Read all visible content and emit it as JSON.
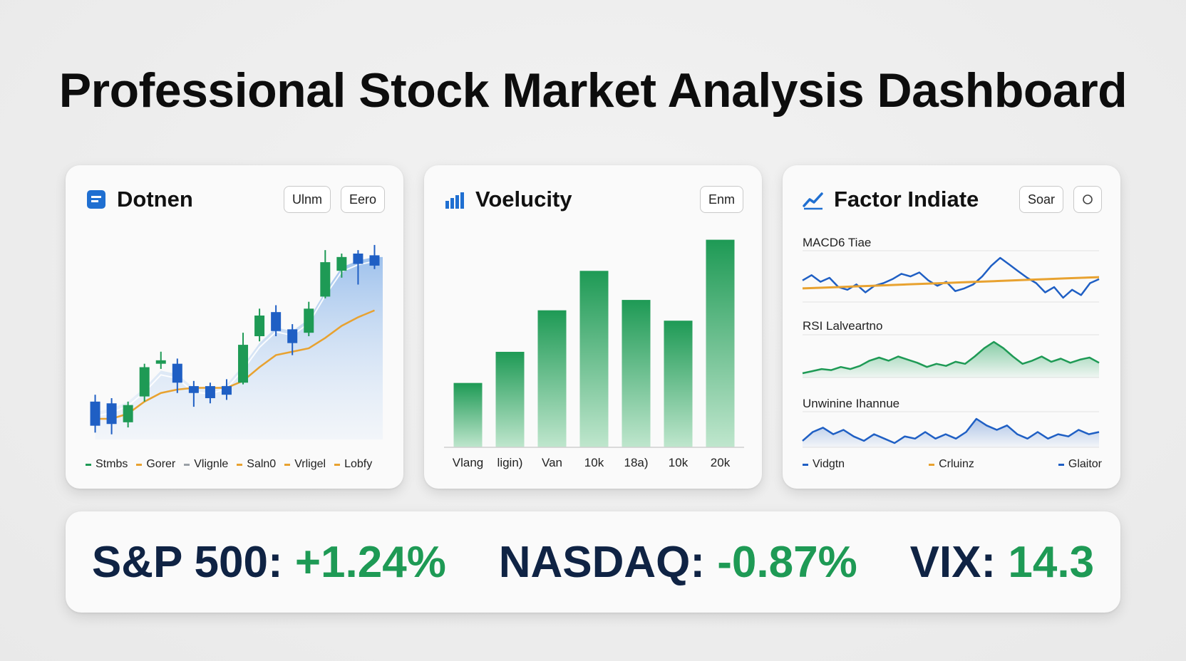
{
  "page": {
    "title": "Professional Stock Market Analysis Dashboard"
  },
  "colors": {
    "green": "#1e9a55",
    "blue": "#1f5fc4",
    "orange": "#e8a230",
    "navy": "#0f2344"
  },
  "cards": {
    "price": {
      "title": "Dotnen",
      "icon": "document-icon",
      "buttons": [
        "Ulnm",
        "Eero"
      ],
      "legend": [
        {
          "label": "Stmbs",
          "color": "#1e9a55"
        },
        {
          "label": "Gorer",
          "color": "#e8a230"
        },
        {
          "label": "Vlignle",
          "color": "#9aa0a6"
        },
        {
          "label": "Saln0",
          "color": "#e8a230"
        },
        {
          "label": "Vrligel",
          "color": "#e8a230"
        },
        {
          "label": "Lobfy",
          "color": "#e8a230"
        }
      ]
    },
    "volume": {
      "title": "Voelucity",
      "icon": "bar-chart-icon",
      "buttons": [
        "Enm"
      ]
    },
    "factor": {
      "title": "Factor Indiate",
      "icon": "trend-line-icon",
      "buttons": [
        "Soar"
      ],
      "settings_icon": "circle-icon",
      "panels": [
        "MACD6 Tiae",
        "RSI Lalveartno",
        "Unwinine Ihannue"
      ],
      "legend": [
        {
          "label": "Vidgtn",
          "color": "#1f5fc4"
        },
        {
          "label": "Crluinz",
          "color": "#e8a230"
        },
        {
          "label": "Glaitor",
          "color": "#1f5fc4"
        }
      ]
    }
  },
  "chart_data": [
    {
      "type": "candlestick",
      "title": "Dotnen",
      "candles": [
        {
          "o": 2.2,
          "c": 0.8,
          "h": 2.6,
          "l": 0.4,
          "dir": "down"
        },
        {
          "o": 2.1,
          "c": 0.9,
          "h": 2.4,
          "l": 0.3,
          "dir": "down"
        },
        {
          "o": 1.0,
          "c": 2.0,
          "h": 2.2,
          "l": 0.7,
          "dir": "up"
        },
        {
          "o": 2.5,
          "c": 4.2,
          "h": 4.4,
          "l": 2.2,
          "dir": "up"
        },
        {
          "o": 4.4,
          "c": 4.6,
          "h": 5.1,
          "l": 4.1,
          "dir": "up"
        },
        {
          "o": 4.4,
          "c": 3.3,
          "h": 4.7,
          "l": 2.7,
          "dir": "down"
        },
        {
          "o": 3.1,
          "c": 2.7,
          "h": 3.4,
          "l": 1.9,
          "dir": "down"
        },
        {
          "o": 3.1,
          "c": 2.4,
          "h": 3.3,
          "l": 2.1,
          "dir": "down"
        },
        {
          "o": 3.1,
          "c": 2.6,
          "h": 3.5,
          "l": 2.3,
          "dir": "down"
        },
        {
          "o": 3.3,
          "c": 5.5,
          "h": 6.2,
          "l": 3.2,
          "dir": "up"
        },
        {
          "o": 6.0,
          "c": 7.2,
          "h": 7.6,
          "l": 5.7,
          "dir": "up"
        },
        {
          "o": 7.4,
          "c": 6.3,
          "h": 7.8,
          "l": 6.0,
          "dir": "down"
        },
        {
          "o": 6.4,
          "c": 5.6,
          "h": 6.7,
          "l": 4.9,
          "dir": "down"
        },
        {
          "o": 6.2,
          "c": 7.6,
          "h": 8.0,
          "l": 6.0,
          "dir": "up"
        },
        {
          "o": 8.3,
          "c": 10.3,
          "h": 11.0,
          "l": 8.2,
          "dir": "up"
        },
        {
          "o": 9.8,
          "c": 10.6,
          "h": 10.8,
          "l": 9.4,
          "dir": "up"
        },
        {
          "o": 10.8,
          "c": 10.2,
          "h": 11.0,
          "l": 9.0,
          "dir": "down"
        },
        {
          "o": 10.7,
          "c": 10.1,
          "h": 11.3,
          "l": 9.9,
          "dir": "down"
        }
      ],
      "moving_average": [
        1.2,
        1.2,
        1.5,
        2.2,
        2.7,
        2.9,
        3.0,
        3.0,
        3.0,
        3.4,
        4.2,
        4.9,
        5.1,
        5.3,
        5.9,
        6.6,
        7.1,
        7.5
      ],
      "area": [
        1.6,
        1.8,
        2.2,
        3.0,
        4.0,
        3.8,
        3.0,
        2.9,
        3.2,
        4.3,
        5.6,
        6.5,
        6.3,
        7.0,
        8.6,
        10.0,
        10.4,
        10.6
      ],
      "y_range": [
        0,
        12
      ]
    },
    {
      "type": "bar",
      "title": "Voelucity",
      "categories": [
        "Vlang",
        "ligin)",
        "Van",
        "10k",
        "18a)",
        "10k",
        "20k"
      ],
      "values": [
        31,
        46,
        66,
        85,
        71,
        61,
        100
      ],
      "y_range": [
        0,
        105
      ]
    },
    {
      "type": "line",
      "title": "Factor Indiate",
      "panels": [
        {
          "name": "MACD6 Tiae",
          "series": [
            {
              "color": "#1f5fc4",
              "values": [
                0.3,
                0.7,
                0.2,
                0.5,
                -0.2,
                -0.4,
                0.0,
                -0.6,
                -0.1,
                0.1,
                0.4,
                0.8,
                0.6,
                0.9,
                0.3,
                -0.1,
                0.2,
                -0.5,
                -0.3,
                0.0,
                0.6,
                1.4,
                2.0,
                1.5,
                1.0,
                0.5,
                0.1,
                -0.6,
                -0.2,
                -1.0,
                -0.4,
                -0.8,
                0.1,
                0.4
              ]
            },
            {
              "color": "#e8a230",
              "values": [
                -0.3,
                -0.25,
                -0.2,
                -0.15,
                -0.1,
                -0.05,
                0.0,
                0.05,
                0.1,
                0.15,
                0.2,
                0.25,
                0.3,
                0.35,
                0.4,
                0.45,
                0.5,
                0.55
              ]
            }
          ]
        },
        {
          "name": "RSI Lalveartno",
          "series": [
            {
              "color": "#1e9a55",
              "values": [
                0.0,
                0.2,
                0.4,
                0.3,
                0.6,
                0.4,
                0.7,
                1.2,
                1.5,
                1.2,
                1.6,
                1.3,
                1.0,
                0.6,
                0.9,
                0.7,
                1.1,
                0.9,
                1.6,
                2.4,
                3.0,
                2.4,
                1.6,
                0.9,
                1.2,
                1.6,
                1.1,
                1.4,
                1.0,
                1.3,
                1.5,
                1.0
              ]
            }
          ]
        },
        {
          "name": "Unwinine Ihannue",
          "series": [
            {
              "color": "#1f5fc4",
              "values": [
                0.2,
                0.6,
                0.8,
                0.5,
                0.7,
                0.4,
                0.2,
                0.5,
                0.3,
                0.1,
                0.4,
                0.3,
                0.6,
                0.3,
                0.5,
                0.3,
                0.6,
                1.2,
                0.9,
                0.7,
                0.9,
                0.5,
                0.3,
                0.6,
                0.3,
                0.5,
                0.4,
                0.7,
                0.5,
                0.6
              ]
            }
          ]
        }
      ]
    }
  ],
  "ticker": [
    {
      "label": "S&P 500:",
      "value": "+1.24%"
    },
    {
      "label": "NASDAQ:",
      "value": "-0.87%"
    },
    {
      "label": "VIX:",
      "value": "14.3"
    }
  ]
}
